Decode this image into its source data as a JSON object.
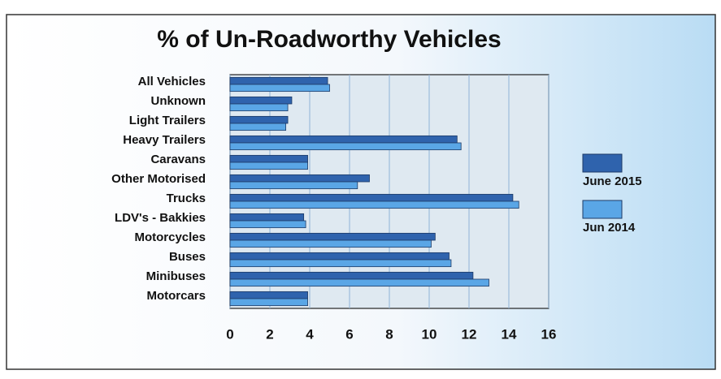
{
  "chart_data": {
    "type": "bar",
    "orientation": "horizontal",
    "title": "% of Un-Roadworthy Vehicles",
    "categories": [
      "All Vehicles",
      "Unknown",
      "Light Trailers",
      "Heavy Trailers",
      "Caravans",
      "Other Motorised",
      "Trucks",
      "LDV's - Bakkies",
      "Motorcycles",
      "Buses",
      "Minibuses",
      "Motorcars"
    ],
    "series": [
      {
        "name": "June 2015",
        "color": "#2f63ad",
        "values": [
          4.9,
          3.1,
          2.9,
          11.4,
          3.9,
          7.0,
          14.2,
          3.7,
          10.3,
          11.0,
          12.2,
          3.9
        ]
      },
      {
        "name": "Jun 2014",
        "color": "#5aa6e6",
        "values": [
          5.0,
          2.9,
          2.8,
          11.6,
          3.9,
          6.4,
          14.5,
          3.8,
          10.1,
          11.1,
          13.0,
          3.9
        ]
      }
    ],
    "xlim": [
      0,
      16
    ],
    "xticks": [
      0,
      2,
      4,
      6,
      8,
      10,
      12,
      14,
      16
    ],
    "grid": true,
    "legend": "right"
  }
}
